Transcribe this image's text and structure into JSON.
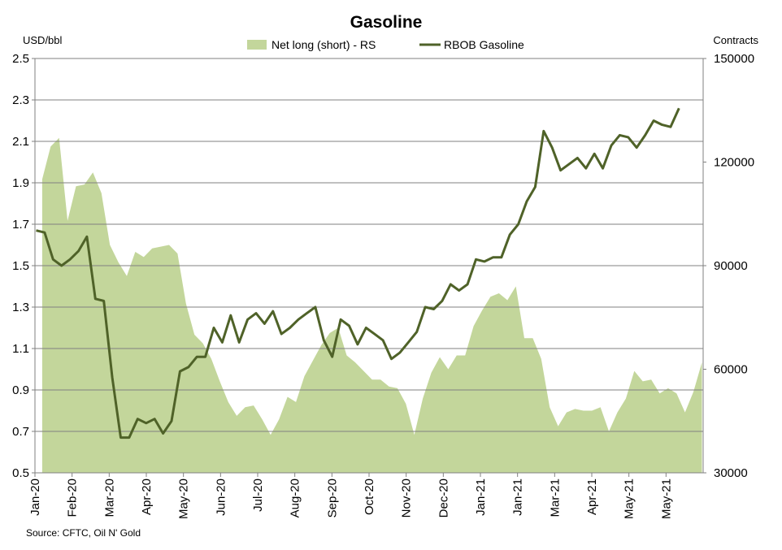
{
  "chart_data": {
    "type": "area+line",
    "title": "Gasoline",
    "left_unit": "USD/bbl",
    "right_unit": "Contracts",
    "source": "Source: CFTC, Oil N' Gold",
    "left_axis": {
      "min": 0.5,
      "max": 2.5,
      "ticks": [
        "0.5",
        "0.7",
        "0.9",
        "1.1",
        "1.3",
        "1.5",
        "1.7",
        "1.9",
        "2.1",
        "2.3",
        "2.5"
      ]
    },
    "right_axis": {
      "min": 30000,
      "max": 150000,
      "ticks": [
        "30000",
        "60000",
        "90000",
        "120000",
        "150000"
      ]
    },
    "x_ticks": [
      "Jan-20",
      "Feb-20",
      "Mar-20",
      "Apr-20",
      "May-20",
      "Jun-20",
      "Jul-20",
      "Aug-20",
      "Sep-20",
      "Oct-20",
      "Nov-20",
      "Dec-20",
      "Jan-21",
      "Jan-21",
      "Mar-21",
      "Apr-21",
      "May-21",
      "May-21"
    ],
    "colors": {
      "area": "#c3d69b",
      "line": "#4f6228",
      "grid": "#808080"
    },
    "series": [
      {
        "name": "Net long (short) - RS",
        "axis": "right",
        "kind": "area",
        "values": [
          115000,
          124500,
          127000,
          103000,
          113000,
          113500,
          117000,
          111000,
          96000,
          91000,
          87000,
          94000,
          92500,
          95000,
          95500,
          96000,
          93500,
          79000,
          70000,
          67500,
          63000,
          56500,
          50500,
          46500,
          49000,
          49500,
          45500,
          41000,
          45500,
          52000,
          50500,
          58000,
          62500,
          67000,
          70500,
          72000,
          64000,
          62000,
          59500,
          57000,
          57000,
          55000,
          54500,
          50000,
          41000,
          51500,
          59000,
          63500,
          60000,
          64000,
          64000,
          72500,
          77000,
          81000,
          82000,
          80000,
          84000,
          69000,
          69000,
          63000,
          49000,
          43500,
          47500,
          48500,
          48000,
          48000,
          49000,
          42000,
          47500,
          51500,
          59500,
          56500,
          57000,
          53000,
          54500,
          53000,
          47500,
          53500,
          62000
        ],
        "dates": [
          "2020-01-07",
          "2020-01-14",
          "2020-01-21",
          "2020-01-28",
          "2020-02-04",
          "2020-02-11",
          "2020-02-18",
          "2020-02-25",
          "2020-03-03",
          "2020-03-10",
          "2020-03-17",
          "2020-03-24",
          "2020-03-31",
          "2020-04-07",
          "2020-04-14",
          "2020-04-21",
          "2020-04-28",
          "2020-05-05",
          "2020-05-12",
          "2020-05-19",
          "2020-05-26",
          "2020-06-02",
          "2020-06-09",
          "2020-06-16",
          "2020-06-23",
          "2020-06-30",
          "2020-07-07",
          "2020-07-14",
          "2020-07-21",
          "2020-07-28",
          "2020-08-04",
          "2020-08-11",
          "2020-08-18",
          "2020-08-25",
          "2020-09-01",
          "2020-09-08",
          "2020-09-15",
          "2020-09-22",
          "2020-09-29",
          "2020-10-06",
          "2020-10-13",
          "2020-10-20",
          "2020-10-27",
          "2020-11-03",
          "2020-11-10",
          "2020-11-17",
          "2020-11-24",
          "2020-12-01",
          "2020-12-08",
          "2020-12-15",
          "2020-12-22",
          "2020-12-29",
          "2021-01-05",
          "2021-01-12",
          "2021-01-19",
          "2021-01-26",
          "2021-02-02",
          "2021-02-09",
          "2021-02-16",
          "2021-02-23",
          "2021-03-02",
          "2021-03-09",
          "2021-03-16",
          "2021-03-23",
          "2021-03-30",
          "2021-04-06",
          "2021-04-13",
          "2021-04-20",
          "2021-04-27",
          "2021-05-04",
          "2021-05-11",
          "2021-05-18",
          "2021-05-25",
          "2021-06-01",
          "2021-06-08",
          "2021-06-15",
          "2021-06-22",
          "2021-06-29",
          "2021-07-06"
        ]
      },
      {
        "name": "RBOB Gasoline",
        "axis": "left",
        "kind": "line",
        "values": [
          1.67,
          1.66,
          1.53,
          1.5,
          1.53,
          1.57,
          1.64,
          1.34,
          1.33,
          0.96,
          0.67,
          0.67,
          0.76,
          0.74,
          0.76,
          0.69,
          0.75,
          0.99,
          1.01,
          1.06,
          1.06,
          1.2,
          1.13,
          1.26,
          1.13,
          1.24,
          1.27,
          1.22,
          1.28,
          1.17,
          1.2,
          1.24,
          1.27,
          1.3,
          1.14,
          1.06,
          1.24,
          1.21,
          1.12,
          1.2,
          1.17,
          1.14,
          1.05,
          1.08,
          1.13,
          1.18,
          1.3,
          1.29,
          1.33,
          1.41,
          1.38,
          1.41,
          1.53,
          1.52,
          1.54,
          1.54,
          1.65,
          1.7,
          1.81,
          1.88,
          2.15,
          2.07,
          1.96,
          1.99,
          2.02,
          1.97,
          2.04,
          1.97,
          2.08,
          2.13,
          2.12,
          2.07,
          2.13,
          2.2,
          2.18,
          2.17,
          2.26
        ],
        "dates": [
          "2020-01-02",
          "2020-01-09",
          "2020-01-16",
          "2020-01-23",
          "2020-01-30",
          "2020-02-06",
          "2020-02-13",
          "2020-02-20",
          "2020-02-27",
          "2020-03-05",
          "2020-03-12",
          "2020-03-19",
          "2020-03-26",
          "2020-04-02",
          "2020-04-09",
          "2020-04-16",
          "2020-04-23",
          "2020-04-30",
          "2020-05-07",
          "2020-05-14",
          "2020-05-21",
          "2020-05-28",
          "2020-06-04",
          "2020-06-11",
          "2020-06-18",
          "2020-06-25",
          "2020-07-02",
          "2020-07-09",
          "2020-07-16",
          "2020-07-23",
          "2020-07-30",
          "2020-08-06",
          "2020-08-13",
          "2020-08-20",
          "2020-08-27",
          "2020-09-03",
          "2020-09-10",
          "2020-09-17",
          "2020-09-24",
          "2020-10-01",
          "2020-10-08",
          "2020-10-15",
          "2020-10-22",
          "2020-10-29",
          "2020-11-05",
          "2020-11-12",
          "2020-11-19",
          "2020-11-26",
          "2020-12-03",
          "2020-12-10",
          "2020-12-17",
          "2020-12-24",
          "2020-12-31",
          "2021-01-07",
          "2021-01-14",
          "2021-01-21",
          "2021-01-28",
          "2021-02-04",
          "2021-02-11",
          "2021-02-18",
          "2021-02-25",
          "2021-03-04",
          "2021-03-11",
          "2021-03-18",
          "2021-03-25",
          "2021-04-01",
          "2021-04-08",
          "2021-04-15",
          "2021-04-22",
          "2021-04-29",
          "2021-05-06",
          "2021-05-13",
          "2021-05-20",
          "2021-05-27",
          "2021-06-03",
          "2021-06-10",
          "2021-06-17"
        ]
      }
    ],
    "grid": true,
    "legend_position": "top-center"
  }
}
